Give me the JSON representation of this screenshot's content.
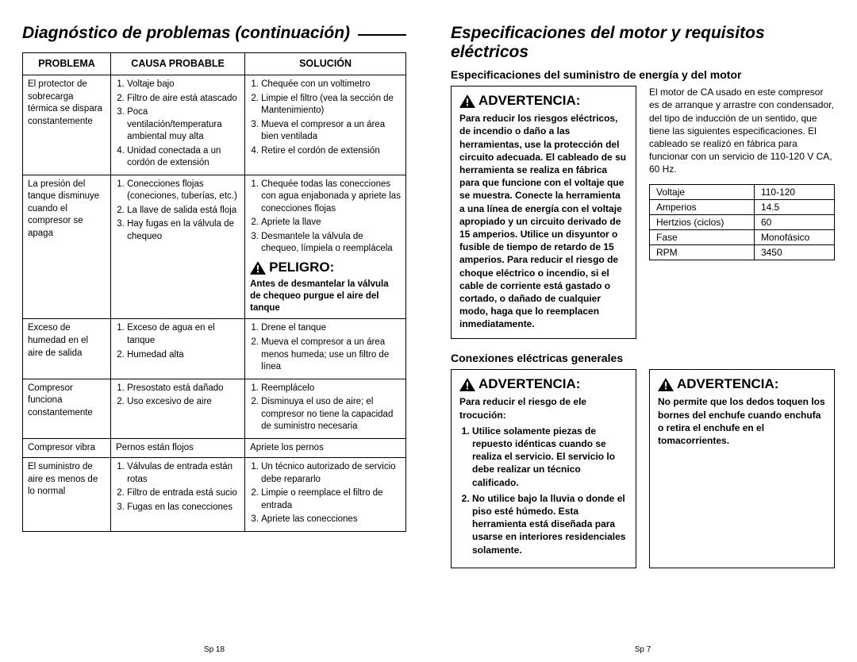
{
  "left": {
    "title": "Diagnóstico de problemas (continuación)",
    "headers": {
      "problem": "Problema",
      "cause": "Causa Probable",
      "solution": "Solución"
    },
    "rows": [
      {
        "problem": "El protector de sobrecarga térmica se dispara constantemente",
        "causes": [
          "Voltaje bajo",
          "Filtro de aire está atascado",
          "Poca ventilación/temperatura ambiental muy alta",
          "Unidad conectada a un cordón de extensión"
        ],
        "solutions": [
          "Chequée con un voltimetro",
          "Limpie el filtro (vea la sección de Mantenimiento)",
          "Mueva el compresor a un área bien ventilada",
          "Retire el cordón de extensión"
        ]
      },
      {
        "problem": "La presión del tanque disminuye cuando el compresor se apaga",
        "causes": [
          "Conecciones flojas (coneciones, tuberías, etc.)",
          "La llave de salida está floja",
          "Hay fugas en la válvula de chequeo"
        ],
        "solutions": [
          "Chequée todas las conecciones con agua enjabonada y apriete las conecciones flojas",
          "Apriete la llave",
          "Desmantele la válvula de chequeo, límpiela o reemplácela"
        ],
        "danger_label": "PELIGRO:",
        "danger_text": "Antes de desmantelar la válvula de chequeo purgue el aire del tanque"
      },
      {
        "problem": "Exceso de humedad en el aire de salida",
        "causes": [
          "Exceso de agua en el tanque",
          "Humedad alta"
        ],
        "solutions": [
          "Drene el tanque",
          "Mueva el compresor a un área menos humeda; use un filtro de línea"
        ]
      },
      {
        "problem": "Compresor funciona constantemente",
        "causes": [
          "Presostato está dañado",
          "Uso excesivo de aire"
        ],
        "solutions": [
          "Reemplácelo",
          "Disminuya el uso de aire; el compresor no tiene la capacidad de suministro necesaria"
        ]
      },
      {
        "problem": "Compresor vibra",
        "causes_text": "Pernos están flojos",
        "solutions_text": "Apriete los pernos"
      },
      {
        "problem": "El suministro de aire es menos de lo normal",
        "causes": [
          "Válvulas de entrada están rotas",
          "Filtro de entrada está sucio",
          "Fugas en las conecciones"
        ],
        "solutions": [
          "Un técnico autorizado de servicio debe repararlo",
          "Limpie o reemplace el filtro de entrada",
          "Apriete las conecciones"
        ]
      }
    ],
    "page": "Sp 18"
  },
  "right": {
    "title": "Especificaciones del motor y requisitos eléctricos",
    "subtitle": "Especificaciones del suministro de energía y del motor",
    "warn_label": "ADVERTENCIA:",
    "warn1": "Para reducir los riesgos eléctricos, de incendio o daño a las herramientas, use la protección del circuito adecuada. El cableado de su herramienta se realiza en fábrica para que funcione con el voltaje que se muestra. Conecte la herramienta a una línea de energía con el voltaje apropiado y un circuito derivado de 15 amperios. Utilice un disyuntor o fusible de tiempo de retardo de 15 amperios. Para reducir el riesgo de choque eléctrico o incendio, si el cable de corriente está gastado o cortado, o dañado de cualquier modo, haga que lo reemplacen inmediatamente.",
    "motor_text": "El motor de CA usado en este compresor es de arranque y arrastre con condensador, del tipo de inducción de un sentido, que tiene las siguientes especificaciones. El cableado se realizó en fábrica para funcionar con un servicio de 110-120 V CA, 60 Hz.",
    "spec_rows": [
      [
        "Voltaje",
        "110-120"
      ],
      [
        "Amperios",
        "14.5"
      ],
      [
        "Hertzios (ciclos)",
        "60"
      ],
      [
        "Fase",
        "Monofásico"
      ],
      [
        "RPM",
        "3450"
      ]
    ],
    "conn_title": "Conexiones eléctricas generales",
    "warn2_intro": "Para reducir el riesgo de ele trocución:",
    "warn2_items": [
      "Utilice solamente piezas de repuesto idénticas cuando se realiza el servicio. El servicio lo debe realizar un técnico calificado.",
      "No utilice bajo la lluvia o donde el piso esté húmedo. Esta herramienta está diseñada para usarse en interiores residenciales solamente."
    ],
    "warn3": "No permite que los dedos toquen los bornes del enchufe cuando enchufa o retira el enchufe en el tomacorrientes.",
    "page": "Sp 7"
  }
}
